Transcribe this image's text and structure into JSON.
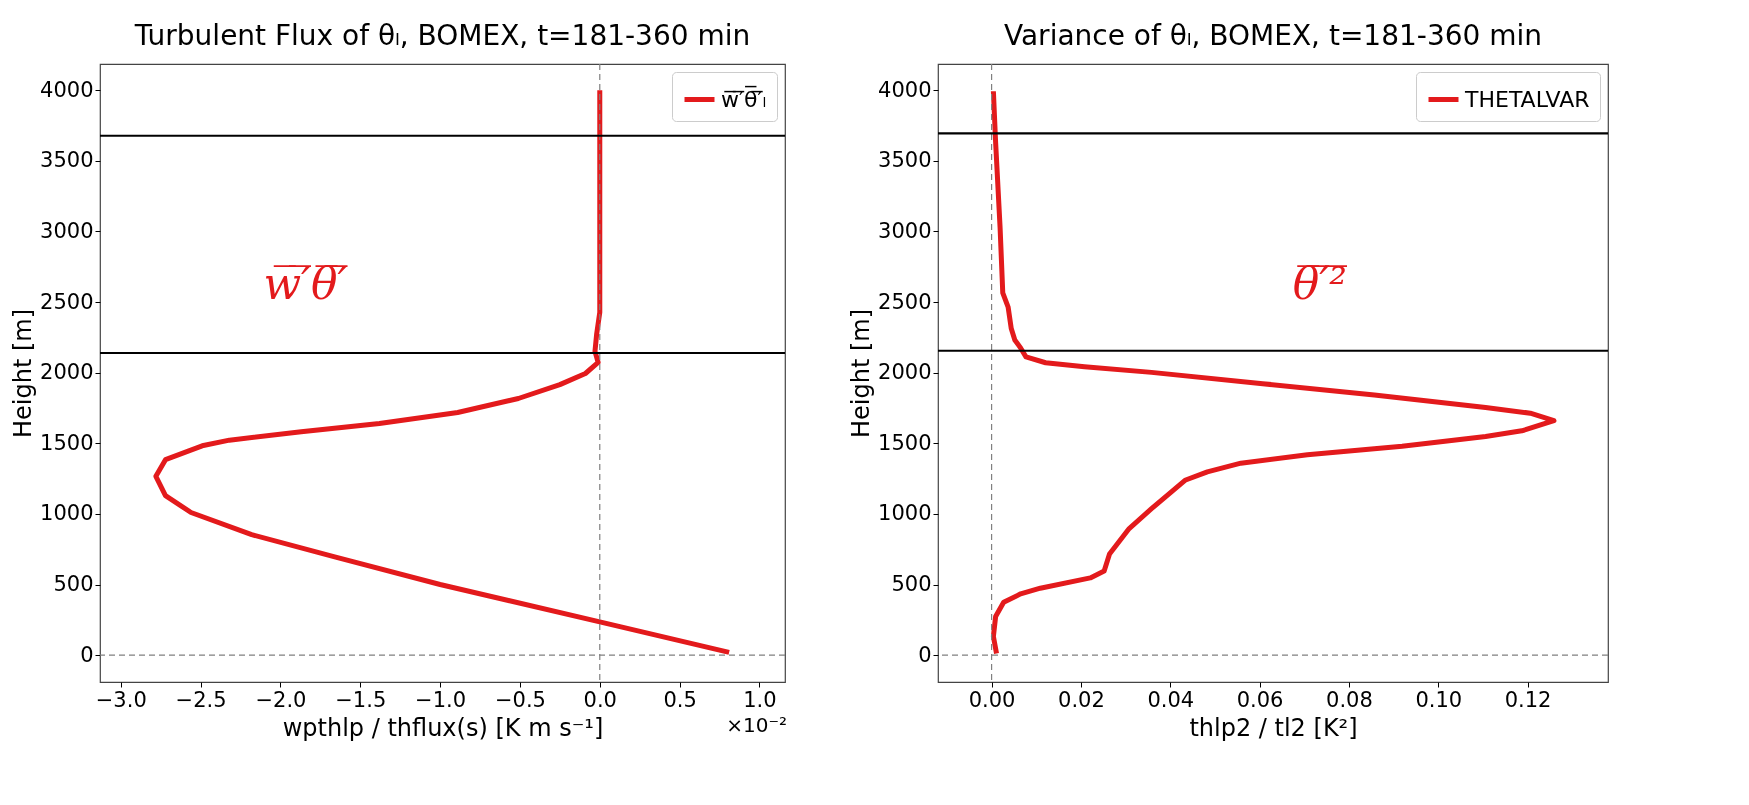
{
  "chart_data": [
    {
      "type": "line",
      "title": "Turbulent Flux of θₗ, BOMEX, t=181-360 min",
      "xlabel": "wpthlp / thflux(s) [K m s⁻¹]",
      "ylabel": "Height [m]",
      "series": [
        {
          "name": "w̅′̅θ̅′̅ₗ",
          "color": "#e31a1c",
          "x": [
            0.81,
            0.0,
            -1.0,
            -1.66,
            -2.18,
            -2.56,
            -2.72,
            -2.78,
            -2.72,
            -2.49,
            -2.32,
            -1.87,
            -1.38,
            -0.89,
            -0.51,
            -0.25,
            -0.09,
            -0.01,
            -0.03,
            -0.02,
            0.0,
            0.0,
            0.0
          ],
          "values": [
            20,
            236,
            500,
            696,
            853,
            1010,
            1129,
            1266,
            1384,
            1482,
            1522,
            1581,
            1640,
            1718,
            1817,
            1915,
            1994,
            2072,
            2151,
            2269,
            2426,
            2662,
            4000
          ]
        }
      ],
      "xlim": [
        -3.13,
        1.16
      ],
      "ylim": [
        -190,
        4185
      ],
      "xticks": [
        {
          "value": -3,
          "label": "−3.0"
        },
        {
          "value": -2.5,
          "label": "−2.5"
        },
        {
          "value": -2,
          "label": "−2.0"
        },
        {
          "value": -1.5,
          "label": "−1.5"
        },
        {
          "value": -1,
          "label": "−1.0"
        },
        {
          "value": -0.5,
          "label": "−0.5"
        },
        {
          "value": 0,
          "label": "0.0"
        },
        {
          "value": 0.5,
          "label": "0.5"
        },
        {
          "value": 1,
          "label": "1.0"
        }
      ],
      "yticks": [
        0,
        500,
        1000,
        1500,
        2000,
        2500,
        3000,
        3500,
        4000
      ],
      "ref_lines": [
        {
          "axis": "x",
          "value": 0,
          "color": "#808080",
          "line_style": "dashed"
        },
        {
          "axis": "y",
          "value": 0,
          "color": "#808080",
          "line_style": "dashed"
        },
        {
          "axis": "y",
          "value": 3677,
          "color": "#000000"
        },
        {
          "axis": "y",
          "value": 2139,
          "color": "#000000"
        }
      ],
      "annotations": [
        "w̅′̅θ̅′̅",
        "×10⁻²"
      ],
      "legend": "top right",
      "grid": false,
      "line_style": "solid"
    },
    {
      "type": "line",
      "title": "Variance of θₗ, BOMEX, t=181-360 min",
      "xlabel": "thlp2 / tl2 [K²]",
      "ylabel": "Height [m]",
      "series": [
        {
          "name": "THETALVAR",
          "color": "#e31a1c",
          "x": [
            0.0011,
            0.0004,
            0.0009,
            0.0027,
            0.0065,
            0.0109,
            0.0221,
            0.0252,
            0.0264,
            0.0308,
            0.0358,
            0.0433,
            0.0483,
            0.0558,
            0.0707,
            0.0919,
            0.1106,
            0.1187,
            0.1259,
            0.1206,
            0.1106,
            0.0857,
            0.0607,
            0.0358,
            0.0208,
            0.0121,
            0.0077,
            0.0065,
            0.0052,
            0.0044,
            0.0037,
            0.0025,
            0.0019,
            0.0009,
            0.0004
          ],
          "values": [
            12,
            133,
            273,
            374,
            434,
            474,
            547,
            595,
            716,
            896,
            1037,
            1238,
            1298,
            1359,
            1419,
            1479,
            1548,
            1588,
            1660,
            1713,
            1753,
            1841,
            1922,
            2002,
            2042,
            2070,
            2111,
            2175,
            2231,
            2312,
            2464,
            2565,
            3027,
            3630,
            3992
          ]
        }
      ],
      "xlim": [
        -0.012,
        0.138
      ],
      "ylim": [
        -190,
        4185
      ],
      "xticks": [
        {
          "value": 0,
          "label": "0.00"
        },
        {
          "value": 0.02,
          "label": "0.02"
        },
        {
          "value": 0.04,
          "label": "0.04"
        },
        {
          "value": 0.06,
          "label": "0.06"
        },
        {
          "value": 0.08,
          "label": "0.08"
        },
        {
          "value": 0.1,
          "label": "0.10"
        },
        {
          "value": 0.12,
          "label": "0.12"
        }
      ],
      "yticks": [
        0,
        500,
        1000,
        1500,
        2000,
        2500,
        3000,
        3500,
        4000
      ],
      "ref_lines": [
        {
          "axis": "x",
          "value": 0,
          "color": "#808080",
          "line_style": "dashed"
        },
        {
          "axis": "y",
          "value": 0,
          "color": "#808080",
          "line_style": "dashed"
        },
        {
          "axis": "y",
          "value": 3694,
          "color": "#000000"
        },
        {
          "axis": "y",
          "value": 2155,
          "color": "#000000"
        }
      ],
      "annotations": [
        "θ̅′̅²̅"
      ],
      "legend": "top right",
      "grid": false,
      "line_style": "solid"
    }
  ]
}
